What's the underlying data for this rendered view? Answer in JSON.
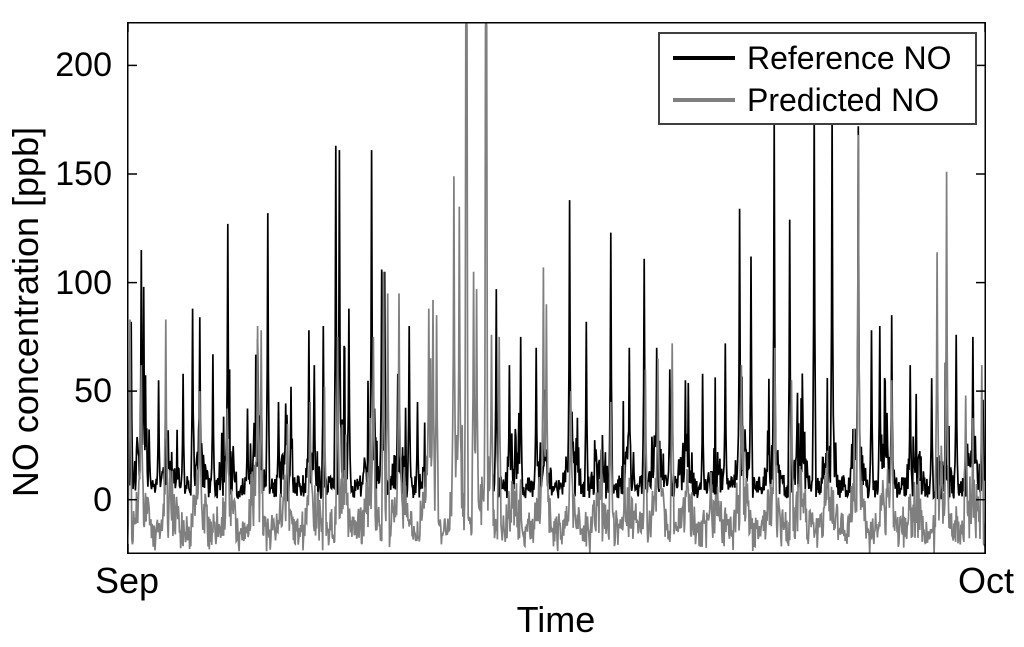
{
  "legend": {
    "items": [
      {
        "label": "Reference NO",
        "color": "#000000"
      },
      {
        "label": "Predicted NO",
        "color": "#7f7f7f"
      }
    ]
  },
  "chart_data": {
    "type": "line",
    "title": "",
    "xlabel": "Time",
    "ylabel": "NO concentration [ppb]",
    "xtick_labels": [
      "Sep",
      "Oct"
    ],
    "xtick_days": [
      0,
      30
    ],
    "x_span_days": 30,
    "ylim": [
      -25,
      220
    ],
    "yticks": [
      0,
      50,
      100,
      150,
      200
    ],
    "grid": false,
    "legend_position": "top-right",
    "background": "#ffffff",
    "axis_color": "#000000",
    "samples_per_day": 48,
    "seed": 7,
    "series": [
      {
        "name": "Reference NO",
        "color": "#000000",
        "line_width": 1.7,
        "baseline": 6,
        "noise_amp": 9,
        "night_dip": 0,
        "clip_min": -2,
        "clip_max": 220,
        "seed_offset": 0,
        "gaps_days": [
          [
            10.42,
            12.78
          ]
        ],
        "day_strength": [
          30,
          22,
          28,
          30,
          32,
          22,
          26,
          42,
          38,
          28,
          20,
          0,
          16,
          26,
          26,
          32,
          28,
          30,
          32,
          24,
          22,
          32,
          32,
          28,
          32,
          32,
          26,
          20,
          26,
          24
        ],
        "peaks_day_value": [
          [
            0.15,
            82
          ],
          [
            0.5,
            115
          ],
          [
            0.58,
            98
          ],
          [
            1.1,
            55
          ],
          [
            1.95,
            58
          ],
          [
            2.3,
            88
          ],
          [
            2.55,
            84
          ],
          [
            3.0,
            67
          ],
          [
            3.52,
            127
          ],
          [
            4.2,
            42
          ],
          [
            4.92,
            132
          ],
          [
            5.3,
            45
          ],
          [
            5.72,
            52
          ],
          [
            6.35,
            78
          ],
          [
            6.55,
            62
          ],
          [
            6.85,
            80
          ],
          [
            7.3,
            163
          ],
          [
            7.42,
            161
          ],
          [
            7.75,
            88
          ],
          [
            8.55,
            161
          ],
          [
            8.9,
            106
          ],
          [
            9.0,
            105
          ],
          [
            9.45,
            58
          ],
          [
            9.85,
            80
          ],
          [
            10.15,
            45
          ],
          [
            12.9,
            97
          ],
          [
            13.35,
            62
          ],
          [
            13.75,
            75
          ],
          [
            14.3,
            70
          ],
          [
            15.45,
            138
          ],
          [
            16.05,
            82
          ],
          [
            16.9,
            123
          ],
          [
            17.55,
            70
          ],
          [
            18.07,
            111
          ],
          [
            18.5,
            70
          ],
          [
            18.95,
            60
          ],
          [
            19.5,
            55
          ],
          [
            20.1,
            58
          ],
          [
            20.9,
            72
          ],
          [
            21.4,
            134
          ],
          [
            21.8,
            112
          ],
          [
            22.6,
            174
          ],
          [
            23.15,
            129
          ],
          [
            24.0,
            182
          ],
          [
            24.62,
            178
          ],
          [
            25.55,
            172
          ],
          [
            26.0,
            78
          ],
          [
            26.3,
            80
          ],
          [
            26.7,
            85
          ],
          [
            27.35,
            62
          ],
          [
            28.1,
            56
          ],
          [
            28.95,
            76
          ],
          [
            29.55,
            75
          ],
          [
            29.9,
            46
          ]
        ]
      },
      {
        "name": "Predicted NO",
        "color": "#7f7f7f",
        "line_width": 1.7,
        "baseline": -9,
        "noise_amp": 11,
        "night_dip": 10,
        "clip_min": -25,
        "clip_max": 220,
        "seed_offset": 99991,
        "gaps_days": [],
        "day_strength": [
          26,
          22,
          16,
          14,
          22,
          12,
          15,
          24,
          30,
          30,
          42,
          40,
          36,
          18,
          26,
          14,
          12,
          15,
          20,
          24,
          12,
          18,
          16,
          14,
          16,
          26,
          16,
          12,
          30,
          18
        ],
        "peaks_day_value": [
          [
            0.1,
            83
          ],
          [
            0.5,
            62
          ],
          [
            1.35,
            83
          ],
          [
            2.55,
            50
          ],
          [
            3.5,
            42
          ],
          [
            4.57,
            80
          ],
          [
            4.68,
            78
          ],
          [
            5.6,
            35
          ],
          [
            6.4,
            45
          ],
          [
            6.9,
            52
          ],
          [
            7.35,
            75
          ],
          [
            8.6,
            75
          ],
          [
            8.95,
            105
          ],
          [
            9.1,
            95
          ],
          [
            9.5,
            95
          ],
          [
            10.55,
            88
          ],
          [
            10.68,
            92
          ],
          [
            10.82,
            85
          ],
          [
            11.42,
            149
          ],
          [
            11.6,
            135
          ],
          [
            11.85,
            230
          ],
          [
            12.1,
            105
          ],
          [
            12.2,
            97
          ],
          [
            12.55,
            230
          ],
          [
            12.72,
            76
          ],
          [
            13.0,
            75
          ],
          [
            14.55,
            107
          ],
          [
            14.65,
            90
          ],
          [
            15.5,
            50
          ],
          [
            16.9,
            45
          ],
          [
            18.1,
            60
          ],
          [
            18.55,
            65
          ],
          [
            19.05,
            72
          ],
          [
            21.45,
            62
          ],
          [
            22.62,
            70
          ],
          [
            23.2,
            55
          ],
          [
            25.55,
            168
          ],
          [
            26.7,
            55
          ],
          [
            28.3,
            114
          ],
          [
            28.62,
            151
          ],
          [
            29.3,
            48
          ],
          [
            29.85,
            62
          ]
        ]
      }
    ]
  }
}
